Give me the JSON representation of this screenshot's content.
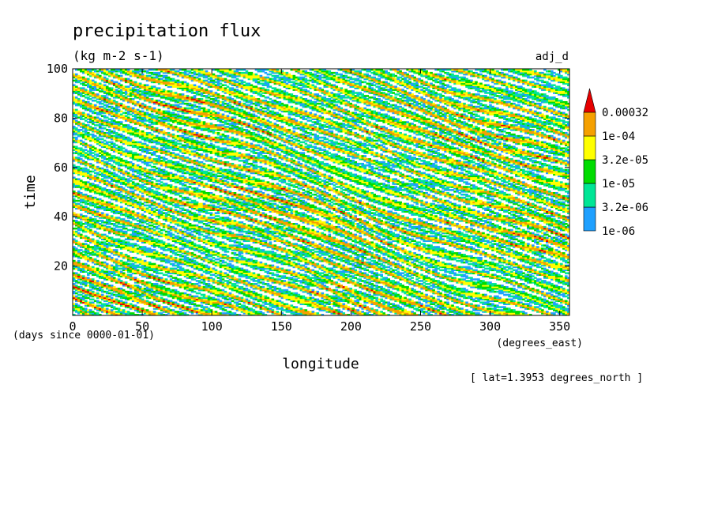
{
  "chart_data": {
    "type": "heatmap",
    "title": "precipitation flux",
    "subtitle": "(kg m-2 s-1)",
    "run_label": "adj_d",
    "xlabel": "longitude",
    "xunits": "(degrees_east)",
    "ylabel": "time",
    "yunits": "(days since 0000-01-01)",
    "annotation": "[ lat=1.3953 degrees_north ]",
    "xlim": [
      0,
      357
    ],
    "ylim": [
      0,
      100
    ],
    "x_ticks": [
      0,
      50,
      100,
      150,
      200,
      250,
      300,
      350
    ],
    "y_ticks": [
      20,
      40,
      60,
      80,
      100
    ],
    "grid": false,
    "legend_position": "right",
    "colorbar": {
      "levels": [
        "1e-06",
        "3.2e-06",
        "1e-05",
        "3.2e-05",
        "1e-04",
        "0.00032"
      ],
      "colors": [
        "#1ea0ff",
        "#00e696",
        "#00dc00",
        "#ffff00",
        "#f5a000",
        "#e60000"
      ]
    },
    "pattern": "eastward-propagating precipitation streaks; values decrease from lower-left to upper-right with time increasing eastward (slope about -0.2 day per degree)"
  }
}
